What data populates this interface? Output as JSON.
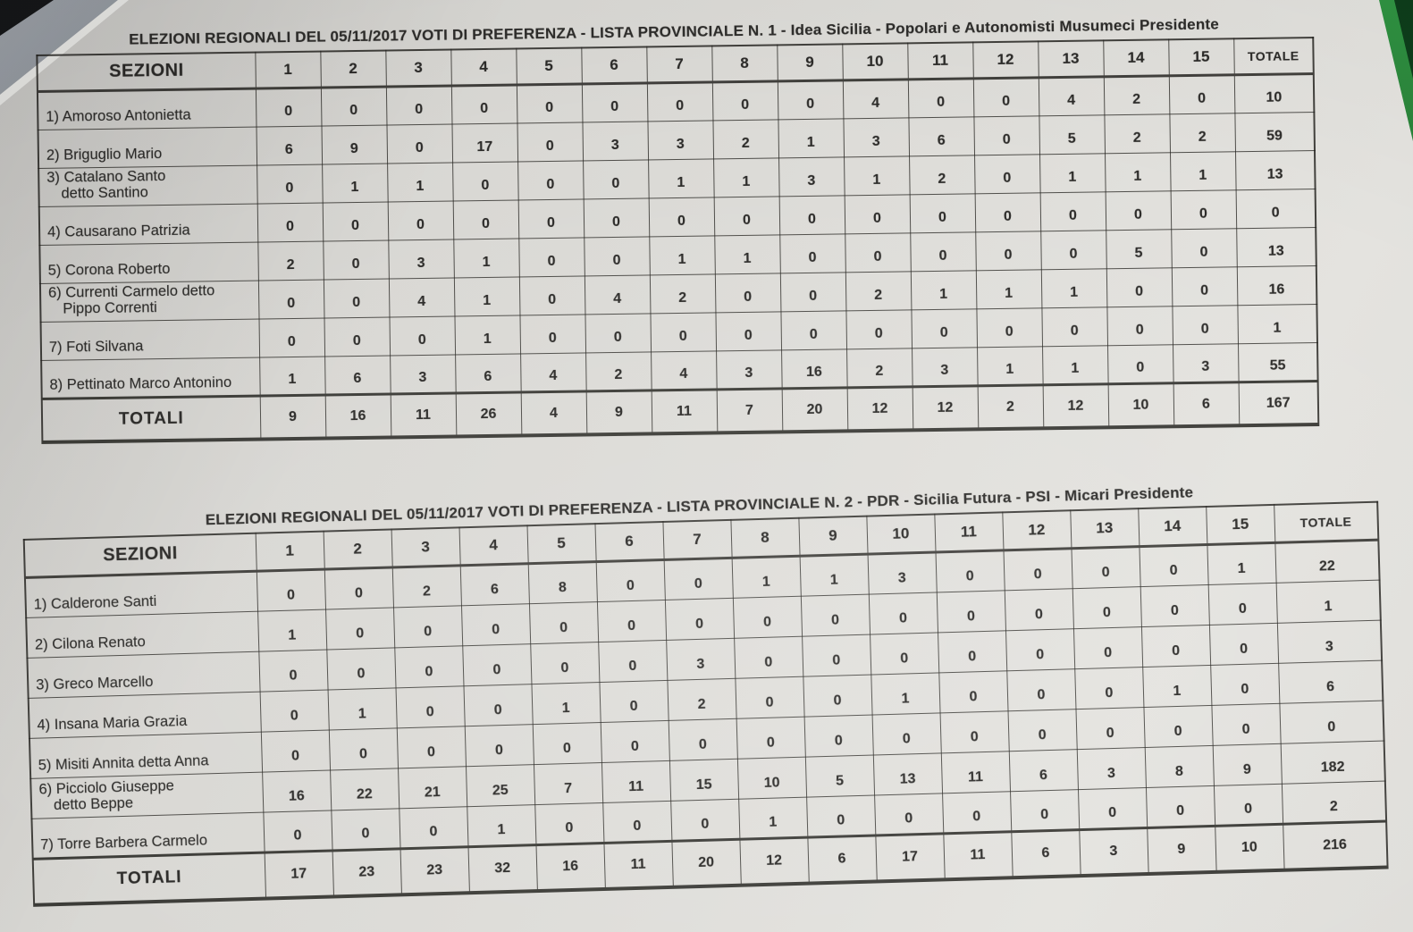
{
  "tables": [
    {
      "title": "ELEZIONI REGIONALI DEL 05/11/2017   VOTI DI PREFERENZA  - LISTA PROVINCIALE N. 1 -  Idea Sicilia - Popolari e Autonomisti   Musumeci Presidente",
      "header_sezioni": "SEZIONI",
      "columns": [
        "1",
        "2",
        "3",
        "4",
        "5",
        "6",
        "7",
        "8",
        "9",
        "10",
        "11",
        "12",
        "13",
        "14",
        "15"
      ],
      "header_totale": "TOTALE",
      "rows": [
        {
          "label_lines": [
            "1) Amoroso Antonietta"
          ],
          "values": [
            0,
            0,
            0,
            0,
            0,
            0,
            0,
            0,
            0,
            4,
            0,
            0,
            4,
            2,
            0
          ],
          "total": 10
        },
        {
          "label_lines": [
            "2) Briguglio Mario"
          ],
          "values": [
            6,
            9,
            0,
            17,
            0,
            3,
            3,
            2,
            1,
            3,
            6,
            0,
            5,
            2,
            2
          ],
          "total": 59
        },
        {
          "label_lines": [
            "3) Catalano Santo",
            "detto Santino"
          ],
          "values": [
            0,
            1,
            1,
            0,
            0,
            0,
            1,
            1,
            3,
            1,
            2,
            0,
            1,
            1,
            1
          ],
          "total": 13
        },
        {
          "label_lines": [
            "4) Causarano Patrizia"
          ],
          "values": [
            0,
            0,
            0,
            0,
            0,
            0,
            0,
            0,
            0,
            0,
            0,
            0,
            0,
            0,
            0
          ],
          "total": 0
        },
        {
          "label_lines": [
            "5) Corona Roberto"
          ],
          "values": [
            2,
            0,
            3,
            1,
            0,
            0,
            1,
            1,
            0,
            0,
            0,
            0,
            0,
            5,
            0
          ],
          "total": 13
        },
        {
          "label_lines": [
            "6) Currenti Carmelo detto",
            "Pippo Correnti"
          ],
          "values": [
            0,
            0,
            4,
            1,
            0,
            4,
            2,
            0,
            0,
            2,
            1,
            1,
            1,
            0,
            0
          ],
          "total": 16
        },
        {
          "label_lines": [
            "7) Foti Silvana"
          ],
          "values": [
            0,
            0,
            0,
            1,
            0,
            0,
            0,
            0,
            0,
            0,
            0,
            0,
            0,
            0,
            0
          ],
          "total": 1
        },
        {
          "label_lines": [
            "8) Pettinato Marco Antonino"
          ],
          "values": [
            1,
            6,
            3,
            6,
            4,
            2,
            4,
            3,
            16,
            2,
            3,
            1,
            1,
            0,
            3
          ],
          "total": 55
        }
      ],
      "totals": {
        "label": "TOTALI",
        "values": [
          9,
          16,
          11,
          26,
          4,
          9,
          11,
          7,
          20,
          12,
          12,
          2,
          12,
          10,
          6
        ],
        "total": 167
      }
    },
    {
      "title": "ELEZIONI REGIONALI DEL 05/11/2017   VOTI DI PREFERENZA  - LISTA PROVINCIALE N. 2 -  PDR -  Sicilia Futura  -  PSI  - Micari Presidente",
      "header_sezioni": "SEZIONI",
      "columns": [
        "1",
        "2",
        "3",
        "4",
        "5",
        "6",
        "7",
        "8",
        "9",
        "10",
        "11",
        "12",
        "13",
        "14",
        "15"
      ],
      "header_totale": "TOTALE",
      "rows": [
        {
          "label_lines": [
            "1) Calderone Santi"
          ],
          "values": [
            0,
            0,
            2,
            6,
            8,
            0,
            0,
            1,
            1,
            3,
            0,
            0,
            0,
            0,
            1
          ],
          "total": 22
        },
        {
          "label_lines": [
            "2) Cilona Renato"
          ],
          "values": [
            1,
            0,
            0,
            0,
            0,
            0,
            0,
            0,
            0,
            0,
            0,
            0,
            0,
            0,
            0
          ],
          "total": 1
        },
        {
          "label_lines": [
            "3) Greco Marcello"
          ],
          "values": [
            0,
            0,
            0,
            0,
            0,
            0,
            3,
            0,
            0,
            0,
            0,
            0,
            0,
            0,
            0
          ],
          "total": 3
        },
        {
          "label_lines": [
            "4) Insana Maria Grazia"
          ],
          "values": [
            0,
            1,
            0,
            0,
            1,
            0,
            2,
            0,
            0,
            1,
            0,
            0,
            0,
            1,
            0
          ],
          "total": 6
        },
        {
          "label_lines": [
            "5) Misiti Annita detta Anna"
          ],
          "values": [
            0,
            0,
            0,
            0,
            0,
            0,
            0,
            0,
            0,
            0,
            0,
            0,
            0,
            0,
            0
          ],
          "total": 0
        },
        {
          "label_lines": [
            "6) Picciolo Giuseppe",
            "detto Beppe"
          ],
          "values": [
            16,
            22,
            21,
            25,
            7,
            11,
            15,
            10,
            5,
            13,
            11,
            6,
            3,
            8,
            9
          ],
          "total": 182
        },
        {
          "label_lines": [
            "7) Torre Barbera Carmelo"
          ],
          "values": [
            0,
            0,
            0,
            1,
            0,
            0,
            0,
            1,
            0,
            0,
            0,
            0,
            0,
            0,
            0
          ],
          "total": 2
        }
      ],
      "totals": {
        "label": "TOTALI",
        "values": [
          17,
          23,
          23,
          32,
          16,
          11,
          20,
          12,
          6,
          17,
          11,
          6,
          3,
          9,
          10
        ],
        "total": 216
      }
    }
  ]
}
